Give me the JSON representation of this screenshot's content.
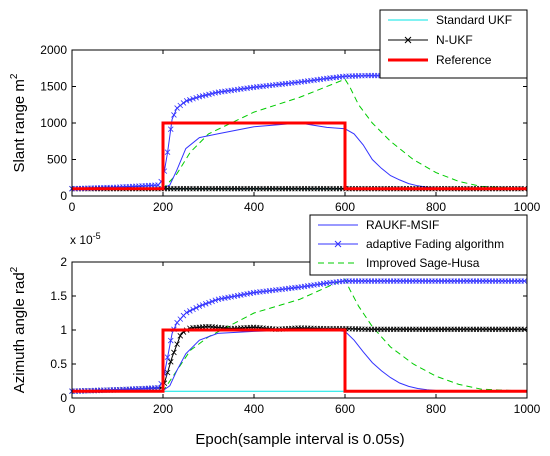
{
  "chart_data": [
    {
      "type": "line",
      "ylabel": "Slant range m",
      "ylabel_sup": "2",
      "xlabel": "",
      "xlim": [
        0,
        1000
      ],
      "ylim": [
        0,
        2000
      ],
      "xticks": [
        "0",
        "200",
        "400",
        "600",
        "800",
        "1000"
      ],
      "yticks": [
        "0",
        "500",
        "1000",
        "1500",
        "2000"
      ],
      "grid": false,
      "legend": {
        "position": "top-right",
        "entries": [
          "Standard UKF",
          "N-UKF",
          "Reference"
        ]
      },
      "series": [
        {
          "name": "Standard UKF",
          "color": "#00e5e5",
          "style": "solid",
          "x": [
            0,
            1000
          ],
          "y": [
            100,
            100
          ]
        },
        {
          "name": "N-UKF",
          "color": "#000000",
          "style": "x-markers",
          "x": [
            0,
            100,
            200,
            300,
            400,
            500,
            600,
            700,
            800,
            900,
            1000
          ],
          "y": [
            100,
            100,
            100,
            100,
            100,
            100,
            100,
            100,
            100,
            100,
            100
          ]
        },
        {
          "name": "Reference",
          "color": "#ff0000",
          "style": "thick-solid",
          "x": [
            0,
            200,
            200,
            600,
            600,
            1000
          ],
          "y": [
            100,
            100,
            1000,
            1000,
            100,
            100
          ]
        },
        {
          "name": "RAUKF-MSIF",
          "color": "#3333ff",
          "style": "solid",
          "x": [
            0,
            200,
            215,
            230,
            250,
            280,
            320,
            400,
            500,
            560,
            600,
            620,
            640,
            660,
            680,
            700,
            720,
            740,
            760,
            780,
            800,
            850,
            900,
            950,
            1000
          ],
          "y": [
            100,
            110,
            150,
            350,
            650,
            800,
            850,
            950,
            1000,
            940,
            920,
            850,
            700,
            500,
            380,
            280,
            220,
            170,
            140,
            120,
            110,
            100,
            100,
            100,
            100
          ]
        },
        {
          "name": "adaptive Fading algorithm",
          "color": "#3333ff",
          "style": "x-markers",
          "x": [
            0,
            100,
            190,
            200,
            210,
            220,
            230,
            250,
            280,
            320,
            400,
            500,
            560,
            600,
            650,
            700,
            800,
            900,
            1000
          ],
          "y": [
            100,
            120,
            150,
            230,
            600,
            1050,
            1200,
            1300,
            1360,
            1420,
            1490,
            1560,
            1610,
            1640,
            1650,
            1650,
            1650,
            1650,
            1650
          ]
        },
        {
          "name": "Improved Sage-Husa",
          "color": "#00cc00",
          "style": "dashed",
          "x": [
            0,
            200,
            230,
            260,
            300,
            400,
            500,
            600,
            610,
            630,
            660,
            700,
            750,
            800,
            850,
            900,
            1000
          ],
          "y": [
            100,
            100,
            300,
            600,
            850,
            1150,
            1350,
            1600,
            1500,
            1250,
            1000,
            750,
            500,
            320,
            200,
            130,
            100
          ]
        }
      ]
    },
    {
      "type": "line",
      "ylabel": "Azimuth angle rad",
      "ylabel_sup": "2",
      "xlabel": "Epoch(sample interval is 0.05s)",
      "scale_note": "x 10",
      "scale_exp": "-5",
      "xlim": [
        0,
        1000
      ],
      "ylim": [
        0,
        2
      ],
      "xticks": [
        "0",
        "200",
        "400",
        "600",
        "800",
        "1000"
      ],
      "yticks": [
        "0",
        "0.5",
        "1",
        "1.5",
        "2"
      ],
      "grid": false,
      "legend": {
        "position": "top-right",
        "entries": [
          "RAUKF-MSIF",
          "adaptive Fading algorithm",
          "Improved Sage-Husa"
        ]
      },
      "series": [
        {
          "name": "Standard UKF",
          "color": "#00e5e5",
          "style": "solid",
          "x": [
            0,
            1000
          ],
          "y": [
            0.1,
            0.1
          ]
        },
        {
          "name": "N-UKF",
          "color": "#000000",
          "style": "x-markers",
          "x": [
            0,
            100,
            200,
            220,
            240,
            260,
            300,
            350,
            400,
            450,
            500,
            550,
            600,
            650,
            700,
            800,
            900,
            1000
          ],
          "y": [
            0.1,
            0.12,
            0.15,
            0.6,
            0.95,
            1.03,
            1.05,
            1.02,
            1.04,
            1.01,
            1.03,
            1.02,
            1.02,
            1.01,
            1.01,
            1.01,
            1.01,
            1.01
          ]
        },
        {
          "name": "Reference",
          "color": "#ff0000",
          "style": "thick-solid",
          "x": [
            0,
            200,
            200,
            600,
            600,
            1000
          ],
          "y": [
            0.1,
            0.1,
            1.0,
            1.0,
            0.1,
            0.1
          ]
        },
        {
          "name": "RAUKF-MSIF",
          "color": "#3333ff",
          "style": "solid",
          "x": [
            0,
            200,
            215,
            230,
            250,
            280,
            320,
            400,
            500,
            560,
            600,
            620,
            640,
            660,
            680,
            700,
            720,
            740,
            760,
            780,
            800,
            850,
            900,
            950,
            1000
          ],
          "y": [
            0.1,
            0.11,
            0.18,
            0.4,
            0.65,
            0.85,
            0.95,
            0.98,
            1.0,
            1.0,
            0.98,
            0.85,
            0.68,
            0.52,
            0.4,
            0.3,
            0.22,
            0.17,
            0.14,
            0.12,
            0.11,
            0.1,
            0.1,
            0.1,
            0.1
          ]
        },
        {
          "name": "adaptive Fading algorithm",
          "color": "#3333ff",
          "style": "x-markers",
          "x": [
            0,
            100,
            190,
            200,
            210,
            220,
            230,
            250,
            280,
            320,
            400,
            500,
            560,
            600,
            650,
            700,
            800,
            900,
            1000
          ],
          "y": [
            0.1,
            0.12,
            0.15,
            0.25,
            0.6,
            0.95,
            1.1,
            1.25,
            1.35,
            1.45,
            1.55,
            1.63,
            1.69,
            1.72,
            1.72,
            1.72,
            1.72,
            1.72,
            1.72
          ]
        },
        {
          "name": "Improved Sage-Husa",
          "color": "#00cc00",
          "style": "dashed",
          "x": [
            0,
            200,
            230,
            260,
            300,
            400,
            500,
            600,
            610,
            630,
            660,
            700,
            750,
            800,
            850,
            900,
            1000
          ],
          "y": [
            0.1,
            0.1,
            0.4,
            0.7,
            0.9,
            1.25,
            1.45,
            1.75,
            1.6,
            1.35,
            1.05,
            0.75,
            0.5,
            0.32,
            0.2,
            0.13,
            0.1
          ]
        }
      ]
    }
  ]
}
